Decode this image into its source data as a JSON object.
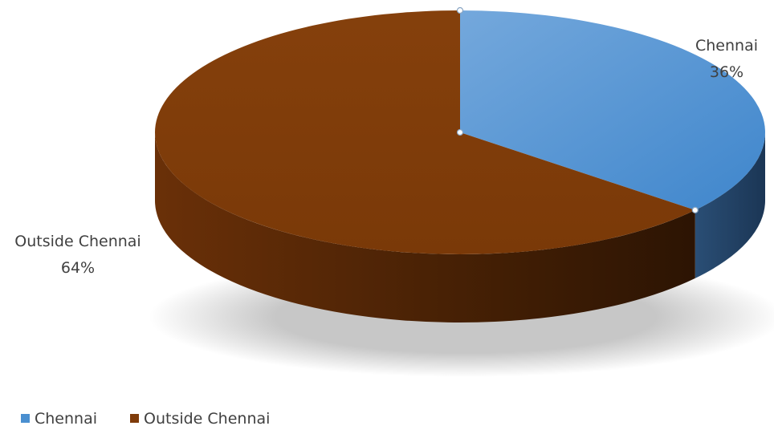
{
  "chart_data": {
    "type": "pie",
    "title": "",
    "categories": [
      "Chennai",
      "Outside Chennai"
    ],
    "values": [
      36,
      64
    ],
    "value_unit": "%",
    "series": [
      {
        "name": "Chennai",
        "value": 36,
        "label_name": "Chennai",
        "label_value": "36%",
        "color": "#5a9bd5"
      },
      {
        "name": "Outside Chennai",
        "value": 64,
        "label_name": "Outside Chennai",
        "label_value": "64%",
        "color": "#7f3b0a"
      }
    ],
    "style": "3d",
    "legend_position": "bottom-left",
    "legend": [
      "Chennai",
      "Outside Chennai"
    ]
  }
}
